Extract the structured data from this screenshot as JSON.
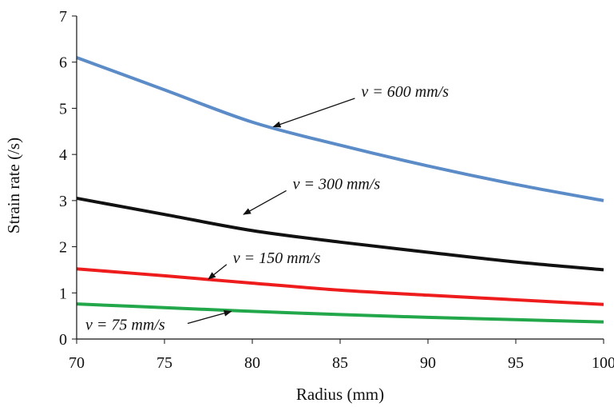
{
  "chart_data": {
    "type": "line",
    "xlabel": "Radius (mm)",
    "ylabel": "Strain rate (/s)",
    "xlim": [
      70,
      100
    ],
    "ylim": [
      0,
      7
    ],
    "xticks": [
      "70",
      "75",
      "80",
      "85",
      "90",
      "95",
      "100"
    ],
    "yticks": [
      "0",
      "1",
      "2",
      "3",
      "4",
      "5",
      "6",
      "7"
    ],
    "grid": false,
    "legend": "none",
    "series": [
      {
        "name": "v = 600 mm/s",
        "color": "#5b8cc8",
        "x": [
          70,
          75,
          80,
          85,
          90,
          95,
          100
        ],
        "values": [
          6.1,
          5.4,
          4.7,
          4.2,
          3.75,
          3.35,
          3.0
        ]
      },
      {
        "name": "v = 300 mm/s",
        "color": "#111111",
        "x": [
          70,
          75,
          80,
          85,
          90,
          95,
          100
        ],
        "values": [
          3.05,
          2.7,
          2.35,
          2.1,
          1.88,
          1.67,
          1.5
        ]
      },
      {
        "name": "v = 150 mm/s",
        "color": "#ee1c1c",
        "x": [
          70,
          75,
          80,
          85,
          90,
          95,
          100
        ],
        "values": [
          1.52,
          1.37,
          1.21,
          1.06,
          0.95,
          0.85,
          0.75
        ]
      },
      {
        "name": "v = 75 mm/s",
        "color": "#22a74a",
        "x": [
          70,
          75,
          80,
          85,
          90,
          95,
          100
        ],
        "values": [
          0.76,
          0.68,
          0.6,
          0.53,
          0.47,
          0.42,
          0.37
        ]
      }
    ],
    "annotations": [
      {
        "text": "v = 600 mm/s",
        "series": 0,
        "text_x": 86.2,
        "text_y": 5.25,
        "arrow_to_x": 81.2,
        "arrow_to_y": 4.6
      },
      {
        "text": "v = 300 mm/s",
        "series": 1,
        "text_x": 82.3,
        "text_y": 3.25,
        "arrow_to_x": 79.5,
        "arrow_to_y": 2.7
      },
      {
        "text": "v = 150 mm/s",
        "series": 2,
        "text_x": 78.9,
        "text_y": 1.65,
        "arrow_to_x": 77.5,
        "arrow_to_y": 1.3
      },
      {
        "text": "v = 75 mm/s",
        "series": 3,
        "text_x": 70.5,
        "text_y": 0.2,
        "arrow_to_x": 78.8,
        "arrow_to_y": 0.6
      }
    ]
  }
}
